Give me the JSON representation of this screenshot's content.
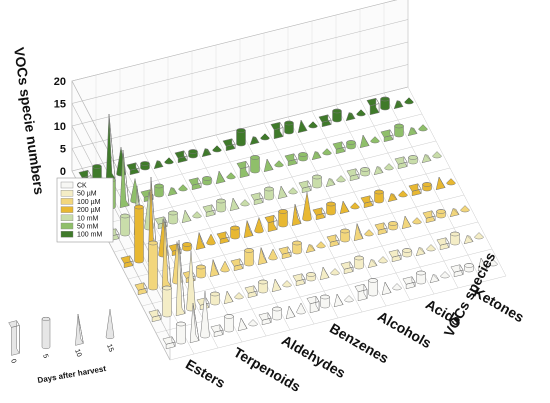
{
  "chart_data": {
    "type": "bar3d",
    "z_label": "VOCs specie numbers",
    "x_label": "VOCs species",
    "days_title": "Days after harvest",
    "categories": [
      "Esters",
      "Terpenoids",
      "Aldehydes",
      "Benzenes",
      "Alcohols",
      "Acids",
      "Ketones"
    ],
    "days": [
      0,
      5,
      10,
      15
    ],
    "ylim": [
      0,
      20
    ],
    "yticks": [
      0,
      5,
      10,
      15,
      20
    ],
    "grid": true,
    "series": [
      {
        "name": "CK",
        "color": "#f7f7f4",
        "values": [
          [
            1,
            4,
            8,
            10
          ],
          [
            1,
            3,
            2,
            1
          ],
          [
            1,
            2,
            2,
            2
          ],
          [
            2,
            2,
            2,
            1
          ],
          [
            2,
            3,
            2,
            1
          ],
          [
            1,
            2,
            1,
            1
          ],
          [
            1,
            1,
            2,
            1
          ]
        ]
      },
      {
        "name": "50 µM",
        "color": "#f4edc6",
        "values": [
          [
            1,
            6,
            16,
            13
          ],
          [
            1,
            2,
            2,
            1
          ],
          [
            1,
            2,
            2,
            1
          ],
          [
            1,
            1,
            2,
            1
          ],
          [
            1,
            2,
            1,
            1
          ],
          [
            1,
            1,
            1,
            1
          ],
          [
            1,
            2,
            1,
            1
          ]
        ]
      },
      {
        "name": "100 µM",
        "color": "#f2d67c",
        "values": [
          [
            1,
            10,
            15,
            9
          ],
          [
            1,
            2,
            3,
            2
          ],
          [
            1,
            3,
            3,
            2
          ],
          [
            1,
            2,
            1,
            1
          ],
          [
            1,
            2,
            3,
            1
          ],
          [
            1,
            1,
            2,
            1
          ],
          [
            1,
            1,
            1,
            1
          ]
        ]
      },
      {
        "name": "200 µM",
        "color": "#e8b832",
        "values": [
          [
            1,
            12,
            18,
            8
          ],
          [
            1,
            1,
            3,
            2
          ],
          [
            1,
            2,
            3,
            3
          ],
          [
            2,
            3,
            4,
            6
          ],
          [
            1,
            2,
            2,
            1
          ],
          [
            1,
            2,
            1,
            1
          ],
          [
            1,
            1,
            2,
            1
          ]
        ]
      },
      {
        "name": "10 mM",
        "color": "#c9ddaa",
        "values": [
          [
            1,
            4,
            10,
            8
          ],
          [
            1,
            2,
            2,
            1
          ],
          [
            1,
            2,
            2,
            1
          ],
          [
            1,
            2,
            2,
            1
          ],
          [
            1,
            2,
            1,
            1
          ],
          [
            1,
            1,
            1,
            1
          ],
          [
            1,
            1,
            1,
            1
          ]
        ]
      },
      {
        "name": "50 mM",
        "color": "#8fbf6a",
        "values": [
          [
            1,
            6,
            12,
            5
          ],
          [
            1,
            2,
            1,
            1
          ],
          [
            1,
            1,
            2,
            1
          ],
          [
            2,
            3,
            2,
            1
          ],
          [
            1,
            1,
            1,
            1
          ],
          [
            1,
            1,
            2,
            1
          ],
          [
            1,
            2,
            1,
            1
          ]
        ]
      },
      {
        "name": "100 mM",
        "color": "#3f7a2a",
        "values": [
          [
            2,
            3,
            14,
            6
          ],
          [
            1,
            1,
            1,
            1
          ],
          [
            1,
            1,
            1,
            1
          ],
          [
            1,
            3,
            1,
            1
          ],
          [
            2,
            2,
            2,
            1
          ],
          [
            1,
            2,
            1,
            1
          ],
          [
            2,
            2,
            1,
            1
          ]
        ]
      }
    ]
  }
}
